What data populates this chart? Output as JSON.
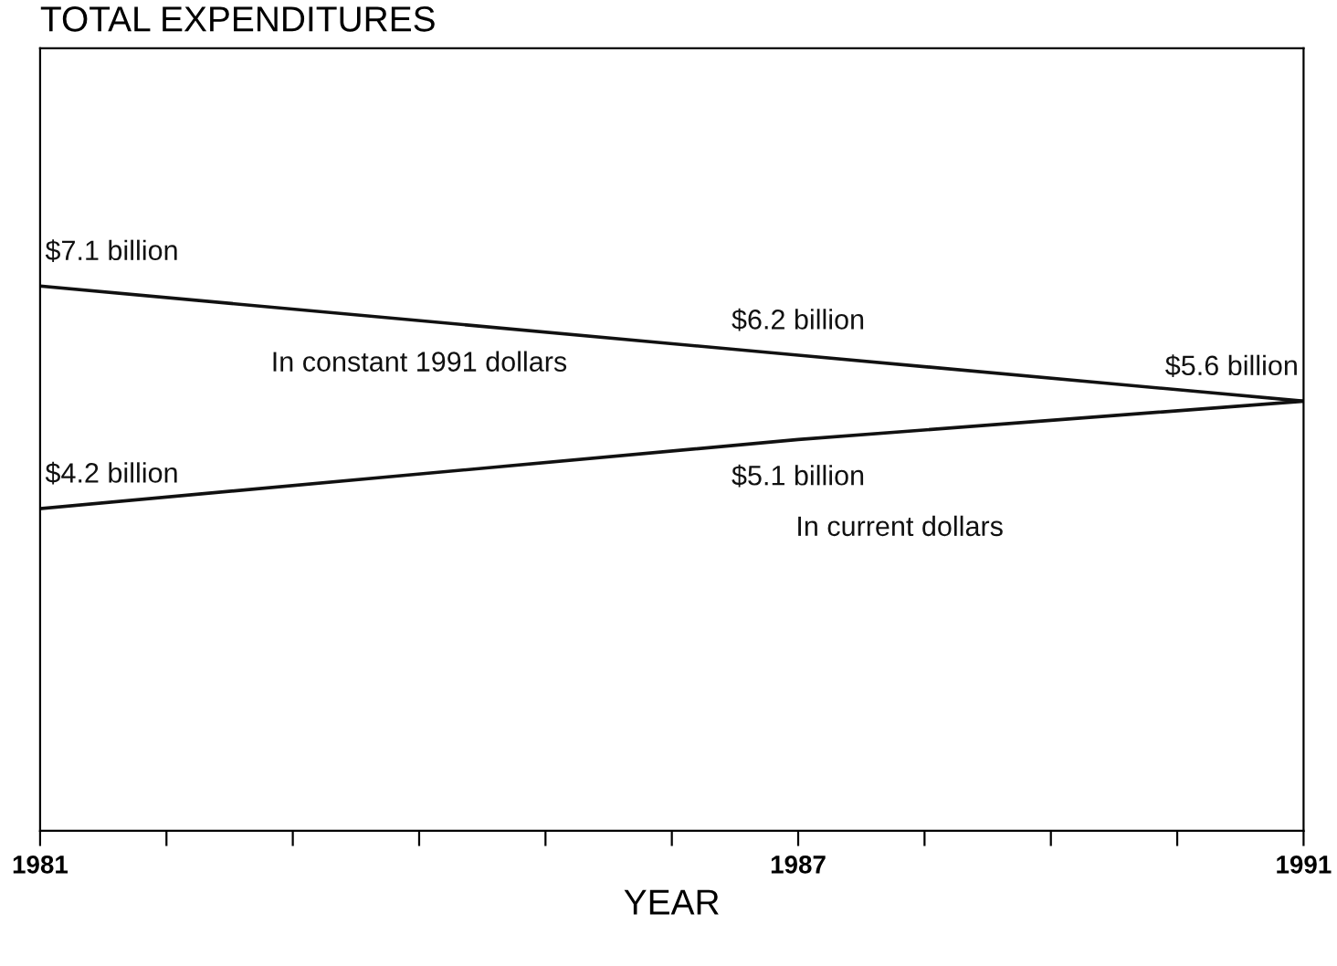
{
  "chart_data": {
    "type": "line",
    "title": "TOTAL EXPENDITURES",
    "xlabel": "YEAR",
    "x": [
      1981,
      1987,
      1991
    ],
    "series": [
      {
        "name": "In constant 1991 dollars",
        "color": "#111111",
        "values": [
          7.1,
          6.2,
          5.6
        ],
        "value_labels": [
          "$7.1 billion",
          "$6.2 billion",
          "$5.6 billion"
        ]
      },
      {
        "name": "In current dollars",
        "color": "#111111",
        "values": [
          4.2,
          5.1,
          5.6
        ],
        "value_labels": [
          "$4.2 billion",
          "$5.1 billion",
          null
        ]
      }
    ],
    "xlim": [
      1981,
      1991
    ],
    "xticks": [
      1981,
      {
        "value": 1982,
        "label": null
      },
      {
        "value": 1983,
        "label": null
      },
      {
        "value": 1984,
        "label": null
      },
      {
        "value": 1985,
        "label": null
      },
      {
        "value": 1986,
        "label": null
      },
      1987,
      {
        "value": 1988,
        "label": null
      },
      {
        "value": 1989,
        "label": null
      },
      {
        "value": 1990,
        "label": null
      },
      1991
    ],
    "ylim": [
      0,
      10.2
    ],
    "tick_labels": "x",
    "grid": false,
    "legend": false,
    "marker": "none",
    "line_style": "solid"
  }
}
